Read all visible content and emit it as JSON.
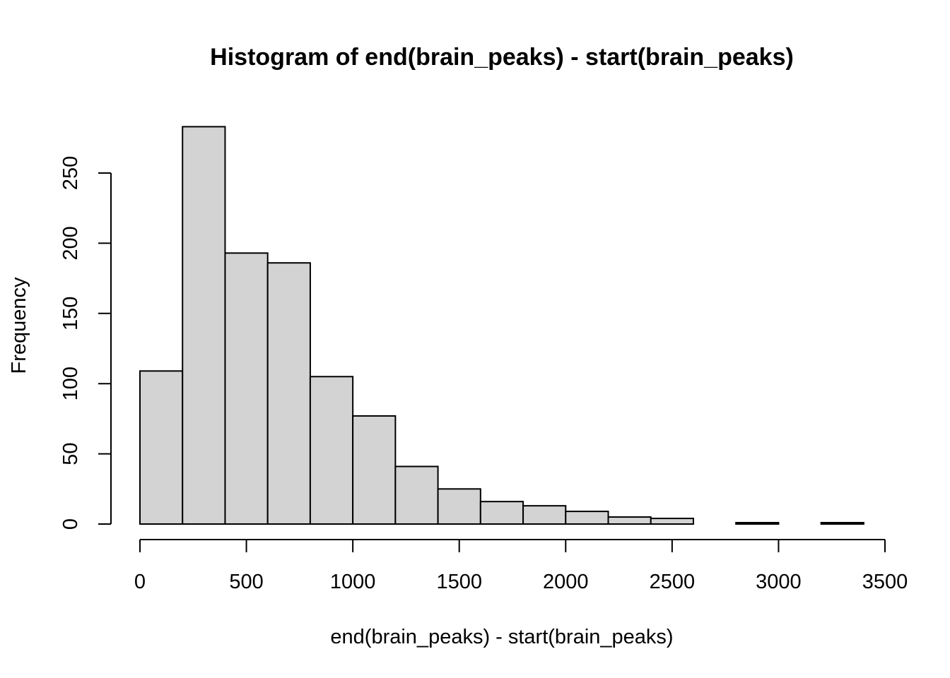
{
  "chart_data": {
    "type": "bar",
    "title": "Histogram of end(brain_peaks) - start(brain_peaks)",
    "xlabel": "end(brain_peaks) - start(brain_peaks)",
    "ylabel": "Frequency",
    "bin_width": 200,
    "bins": [
      {
        "start": 0,
        "end": 200,
        "count": 109
      },
      {
        "start": 200,
        "end": 400,
        "count": 283
      },
      {
        "start": 400,
        "end": 600,
        "count": 193
      },
      {
        "start": 600,
        "end": 800,
        "count": 186
      },
      {
        "start": 800,
        "end": 1000,
        "count": 105
      },
      {
        "start": 1000,
        "end": 1200,
        "count": 77
      },
      {
        "start": 1200,
        "end": 1400,
        "count": 41
      },
      {
        "start": 1400,
        "end": 1600,
        "count": 25
      },
      {
        "start": 1600,
        "end": 1800,
        "count": 16
      },
      {
        "start": 1800,
        "end": 2000,
        "count": 13
      },
      {
        "start": 2000,
        "end": 2200,
        "count": 9
      },
      {
        "start": 2200,
        "end": 2400,
        "count": 5
      },
      {
        "start": 2400,
        "end": 2600,
        "count": 4
      },
      {
        "start": 2600,
        "end": 2800,
        "count": 0
      },
      {
        "start": 2800,
        "end": 3000,
        "count": 1
      },
      {
        "start": 3000,
        "end": 3200,
        "count": 0
      },
      {
        "start": 3200,
        "end": 3400,
        "count": 1
      }
    ],
    "xlim": [
      0,
      3500
    ],
    "ylim": [
      0,
      283
    ],
    "x_ticks": [
      0,
      500,
      1000,
      1500,
      2000,
      2500,
      3000,
      3500
    ],
    "y_ticks": [
      0,
      50,
      100,
      150,
      200,
      250
    ],
    "grid": false,
    "fill_color": "#d3d3d3",
    "border_color": "#000000"
  }
}
